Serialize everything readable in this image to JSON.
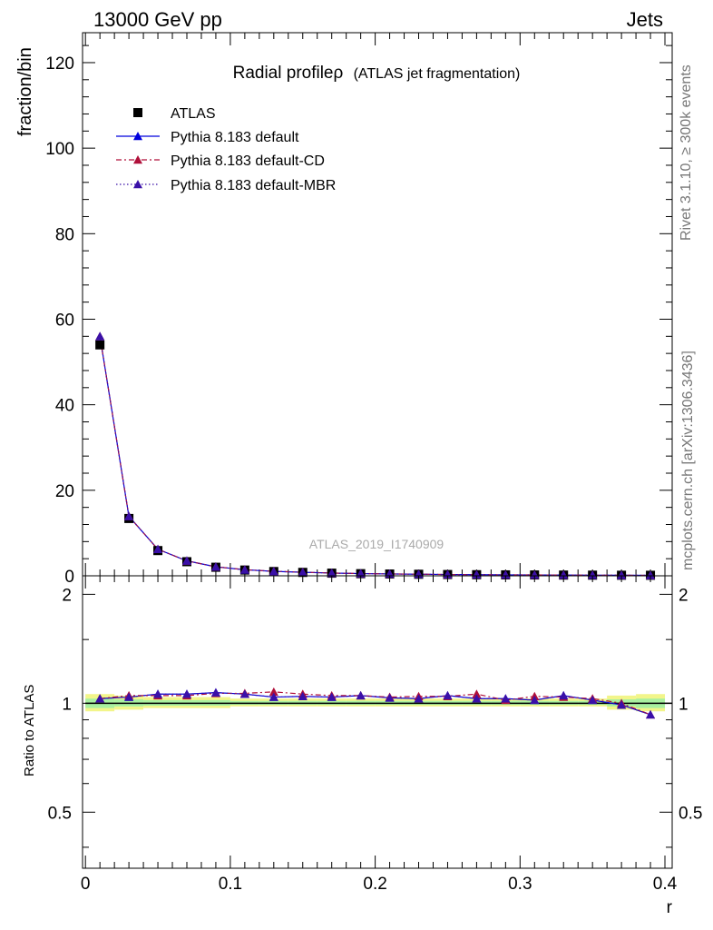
{
  "header": {
    "left": "13000 GeV pp",
    "right": "Jets"
  },
  "side_labels": {
    "rivet": "Rivet 3.1.10, ≥ 300k events",
    "mcplots": "mcplots.cern.ch [arXiv:1306.3436]"
  },
  "chart_data": [
    {
      "type": "scatter",
      "title": "Radial profileρ (ATLAS jet fragmentation)",
      "title_main": "Radial profileρ",
      "title_sub": "(ATLAS jet fragmentation)",
      "ylabel": "fraction/bin",
      "xlabel": "",
      "watermark": "ATLAS_2019_I1740909",
      "xlim": [
        -0.002,
        0.405
      ],
      "ylim": [
        0,
        127
      ],
      "yticks": [
        0,
        20,
        40,
        60,
        80,
        100,
        120
      ],
      "ytick_labels": [
        "0",
        "20",
        "40",
        "60",
        "80",
        "100",
        "120"
      ],
      "legend_position": "top-left",
      "x": [
        0.01,
        0.03,
        0.05,
        0.07,
        0.09,
        0.11,
        0.13,
        0.15,
        0.17,
        0.19,
        0.21,
        0.23,
        0.25,
        0.27,
        0.29,
        0.31,
        0.33,
        0.35,
        0.37,
        0.39
      ],
      "series": [
        {
          "name": "ATLAS",
          "marker": "square",
          "color": "#000000",
          "line": "none",
          "values": [
            54.0,
            13.4,
            5.9,
            3.3,
            2.0,
            1.35,
            1.0,
            0.8,
            0.62,
            0.5,
            0.42,
            0.36,
            0.3,
            0.26,
            0.22,
            0.2,
            0.17,
            0.15,
            0.13,
            0.12
          ]
        },
        {
          "name": "Pythia 8.183 default",
          "marker": "triangle",
          "color": "#0000dd",
          "line": "solid",
          "values": [
            56.0,
            13.9,
            6.2,
            3.5,
            2.1,
            1.42,
            1.04,
            0.83,
            0.65,
            0.52,
            0.44,
            0.37,
            0.31,
            0.27,
            0.23,
            0.2,
            0.18,
            0.15,
            0.13,
            0.11
          ]
        },
        {
          "name": "Pythia 8.183 default-CD",
          "marker": "triangle",
          "color": "#b0103a",
          "line": "dashdot",
          "values": [
            56.0,
            13.9,
            6.2,
            3.5,
            2.1,
            1.43,
            1.06,
            0.84,
            0.65,
            0.52,
            0.44,
            0.38,
            0.31,
            0.27,
            0.23,
            0.21,
            0.18,
            0.15,
            0.13,
            0.11
          ]
        },
        {
          "name": "Pythia 8.183 default-MBR",
          "marker": "triangle",
          "color": "#3a10a8",
          "line": "dotted",
          "values": [
            56.0,
            13.9,
            6.2,
            3.5,
            2.1,
            1.42,
            1.04,
            0.83,
            0.65,
            0.52,
            0.44,
            0.37,
            0.31,
            0.27,
            0.23,
            0.2,
            0.18,
            0.15,
            0.13,
            0.11
          ]
        }
      ]
    },
    {
      "type": "line",
      "title": "",
      "ylabel": "Ratio to ATLAS",
      "xlabel": "r",
      "xlim": [
        -0.002,
        0.405
      ],
      "ylim": [
        0.35,
        2.25
      ],
      "yticks": [
        0.5,
        1,
        2
      ],
      "ytick_labels": [
        "0.5",
        "1",
        "2"
      ],
      "xticks": [
        0,
        0.1,
        0.2,
        0.3,
        0.4
      ],
      "xtick_labels": [
        "0",
        "0.1",
        "0.2",
        "0.3",
        "0.4"
      ],
      "x": [
        0.01,
        0.03,
        0.05,
        0.07,
        0.09,
        0.11,
        0.13,
        0.15,
        0.17,
        0.19,
        0.21,
        0.23,
        0.25,
        0.27,
        0.29,
        0.31,
        0.33,
        0.35,
        0.37,
        0.39
      ],
      "band_edges": [
        0.0,
        0.02,
        0.04,
        0.06,
        0.08,
        0.1,
        0.12,
        0.14,
        0.16,
        0.18,
        0.2,
        0.22,
        0.24,
        0.26,
        0.28,
        0.3,
        0.32,
        0.34,
        0.36,
        0.38,
        0.4
      ],
      "band_outer": [
        [
          0.95,
          1.06
        ],
        [
          0.96,
          1.05
        ],
        [
          0.97,
          1.04
        ],
        [
          0.97,
          1.04
        ],
        [
          0.97,
          1.04
        ],
        [
          0.98,
          1.03
        ],
        [
          0.98,
          1.03
        ],
        [
          0.98,
          1.03
        ],
        [
          0.98,
          1.03
        ],
        [
          0.98,
          1.03
        ],
        [
          0.98,
          1.03
        ],
        [
          0.98,
          1.03
        ],
        [
          0.98,
          1.03
        ],
        [
          0.98,
          1.03
        ],
        [
          0.98,
          1.03
        ],
        [
          0.98,
          1.03
        ],
        [
          0.98,
          1.03
        ],
        [
          0.98,
          1.03
        ],
        [
          0.96,
          1.05
        ],
        [
          0.95,
          1.06
        ]
      ],
      "band_inner": [
        [
          0.97,
          1.03
        ],
        [
          0.98,
          1.025
        ],
        [
          0.985,
          1.02
        ],
        [
          0.985,
          1.02
        ],
        [
          0.985,
          1.02
        ],
        [
          0.99,
          1.015
        ],
        [
          0.99,
          1.015
        ],
        [
          0.99,
          1.015
        ],
        [
          0.99,
          1.015
        ],
        [
          0.99,
          1.015
        ],
        [
          0.99,
          1.015
        ],
        [
          0.99,
          1.015
        ],
        [
          0.99,
          1.015
        ],
        [
          0.99,
          1.015
        ],
        [
          0.99,
          1.015
        ],
        [
          0.99,
          1.015
        ],
        [
          0.99,
          1.015
        ],
        [
          0.99,
          1.015
        ],
        [
          0.98,
          1.025
        ],
        [
          0.97,
          1.03
        ]
      ],
      "band_colors": {
        "outer": "#f2f58a",
        "inner": "#a8f0a0"
      },
      "reference": 1,
      "series": [
        {
          "name": "Pythia 8.183 default",
          "color": "#0000dd",
          "line": "solid",
          "values": [
            1.03,
            1.04,
            1.06,
            1.06,
            1.07,
            1.06,
            1.04,
            1.045,
            1.04,
            1.05,
            1.035,
            1.03,
            1.05,
            1.03,
            1.03,
            1.02,
            1.05,
            1.02,
            0.99,
            0.93
          ]
        },
        {
          "name": "Pythia 8.183 default-CD",
          "color": "#b0103a",
          "line": "dashdot",
          "values": [
            1.03,
            1.05,
            1.05,
            1.05,
            1.065,
            1.065,
            1.075,
            1.06,
            1.05,
            1.05,
            1.04,
            1.045,
            1.045,
            1.06,
            1.02,
            1.045,
            1.04,
            1.03,
            1.0,
            0.93
          ]
        },
        {
          "name": "Pythia 8.183 default-MBR",
          "color": "#3a10a8",
          "line": "dotted",
          "values": [
            1.03,
            1.04,
            1.06,
            1.06,
            1.07,
            1.06,
            1.04,
            1.045,
            1.04,
            1.05,
            1.035,
            1.03,
            1.05,
            1.03,
            1.03,
            1.02,
            1.05,
            1.02,
            0.99,
            0.93
          ]
        }
      ]
    }
  ]
}
